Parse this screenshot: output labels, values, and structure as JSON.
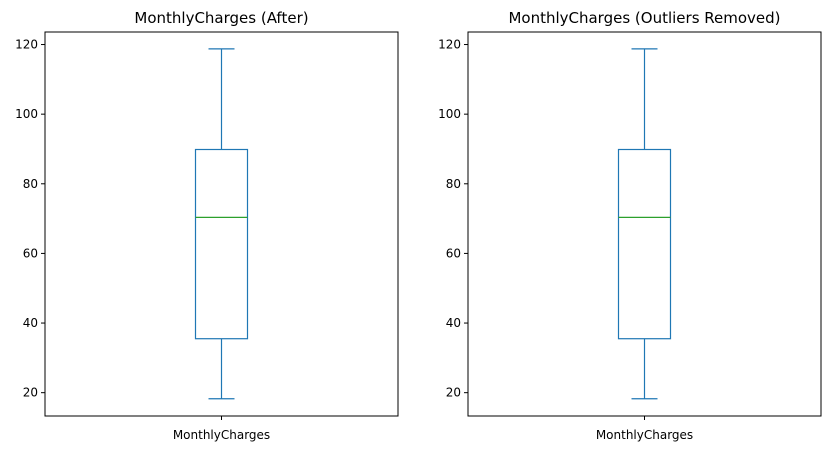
{
  "chart_data": [
    {
      "type": "box",
      "title": "MonthlyCharges (After)",
      "xlabel": "",
      "ylabel": "",
      "categories": [
        "MonthlyCharges"
      ],
      "yticks": [
        20,
        40,
        60,
        80,
        100,
        120
      ],
      "ylim": [
        13.3,
        123.6
      ],
      "grid": false,
      "box": {
        "whisker_low": 18.25,
        "q1": 35.5,
        "median": 70.35,
        "q3": 89.85,
        "whisker_high": 118.75
      }
    },
    {
      "type": "box",
      "title": "MonthlyCharges (Outliers Removed)",
      "xlabel": "",
      "ylabel": "",
      "categories": [
        "MonthlyCharges"
      ],
      "yticks": [
        20,
        40,
        60,
        80,
        100,
        120
      ],
      "ylim": [
        13.3,
        123.6
      ],
      "grid": false,
      "box": {
        "whisker_low": 18.25,
        "q1": 35.5,
        "median": 70.35,
        "q3": 89.85,
        "whisker_high": 118.75
      }
    }
  ],
  "colors": {
    "box": "#1f77b4",
    "median": "#2ca02c",
    "axes": "#000000"
  }
}
